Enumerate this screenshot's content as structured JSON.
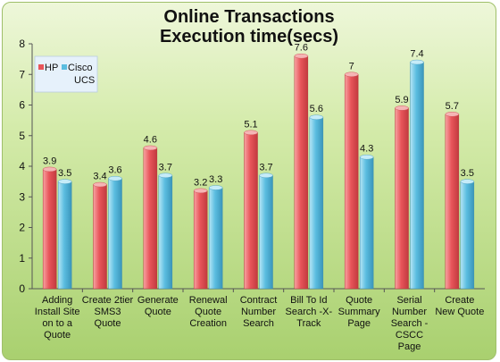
{
  "chart_data": {
    "type": "bar",
    "title": [
      "Online Transactions",
      "Execution time(secs)"
    ],
    "categories": [
      [
        "Adding",
        "Install Site",
        "on to a",
        "Quote"
      ],
      [
        "Create 2tier",
        "SMS3",
        "Quote"
      ],
      [
        "Generate",
        "Quote"
      ],
      [
        "Renewal",
        "Quote",
        "Creation"
      ],
      [
        "Contract",
        "Number",
        "Search"
      ],
      [
        "Bill To  Id",
        "Search -X-",
        "Track"
      ],
      [
        "Quote",
        "Summary",
        "Page"
      ],
      [
        "Serial",
        "Number",
        "Search -",
        "CSCC",
        "Page"
      ],
      [
        "Create",
        "New Quote"
      ]
    ],
    "series": [
      {
        "name": "HP",
        "color": "#e8555a",
        "values": [
          3.9,
          3.4,
          4.6,
          3.2,
          5.1,
          7.6,
          7,
          5.9,
          5.7
        ]
      },
      {
        "name": "Cisco UCS",
        "color": "#5bbde0",
        "values": [
          3.5,
          3.6,
          3.7,
          3.3,
          3.7,
          5.6,
          4.3,
          7.4,
          3.5
        ]
      }
    ],
    "legend_lines": [
      "HP",
      "Cisco",
      "UCS"
    ],
    "ylim": [
      0,
      8
    ],
    "yticks": [
      0,
      1,
      2,
      3,
      4,
      5,
      6,
      7,
      8
    ],
    "grid": false,
    "legend_position": "top-left"
  }
}
